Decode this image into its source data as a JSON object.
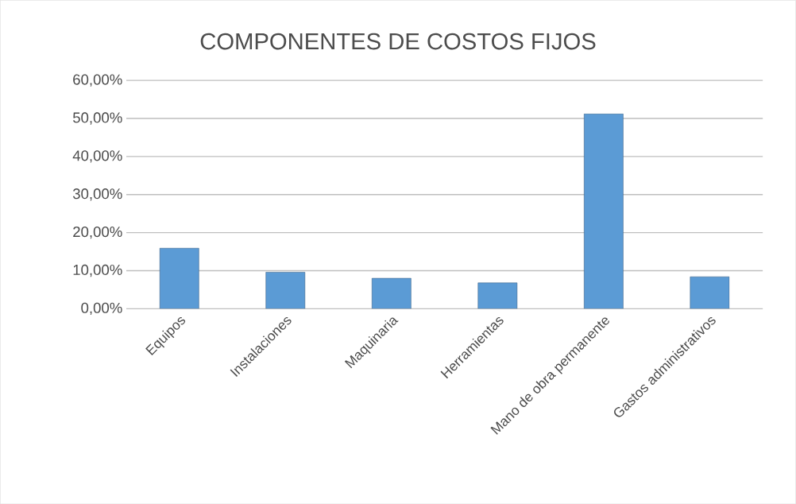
{
  "chart_data": {
    "type": "bar",
    "title": "COMPONENTES DE COSTOS FIJOS",
    "categories": [
      "Equipos",
      "Instalaciones",
      "Maquinaria",
      "Herramientas",
      "Mano de obra permanente",
      "Gastos administrativos"
    ],
    "values": [
      15.9,
      9.6,
      8.0,
      6.8,
      51.2,
      8.4
    ],
    "color": "#5b9bd5",
    "ylim": [
      0,
      60
    ],
    "yticks": [
      {
        "value": 0,
        "label": "0,00%"
      },
      {
        "value": 10,
        "label": "10,00%"
      },
      {
        "value": 20,
        "label": "20,00%"
      },
      {
        "value": 30,
        "label": "30,00%"
      },
      {
        "value": 40,
        "label": "40,00%"
      },
      {
        "value": 50,
        "label": "50,00%"
      },
      {
        "value": 60,
        "label": "60,00%"
      }
    ],
    "grid": "y"
  }
}
